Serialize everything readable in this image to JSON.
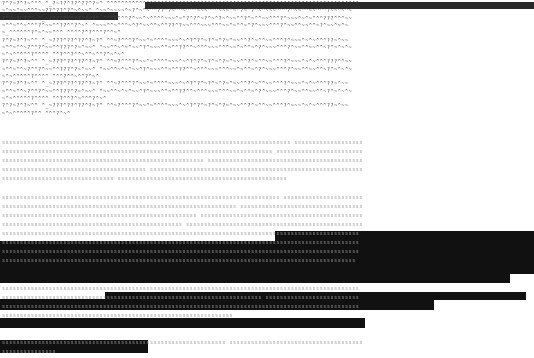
{
  "header": {
    "lines": [
      "?^?~?^?~^^^ ^_?~??^??^??^?~^ ^^^^^^^^^^^^^^^^^^^^^^^^^^^^^^^^^^^^^^^^^^^^^^^^^^^^^^^^^^^^^^^^^^^^^^",
      "~^~~^~~^^^~~??^??^?^~^~~^ ^~~^~~~~^~?^~^~^^??^?~^^~^^^~~~^^^~~~^~^?~^?^~^~~~^^^?^~~^^~~^^^?~~^~^~",
      "?^?~?^?^^ ^_~???^??^??^?~?^ ^^^?^^^?^~~^~^^^^~~~^~^?^?^~?^~^?~^~~^^?^~^^~~^^^?^~~~^~^~^^^???^^^~~",
      "~^^~^^~^^^?^~~^^??^^?^~^ ^~~~^^~^^^~^?^~~^^~^^??^?~~^^^~~~^^^~~^~^^~^?^~~~^^^?^~~^^~~^^~?^~~^~^~",
      "~_^^^^^^?^~^~~^^^ ^^^^?^?^^^?^^~^",
      "?^?~?^?~^^ ^_~???^??^??^?~?^ ^^~?^^^?^~~^~^^^^~~~^~^?^?^~?^~^?~^~~^^?^~^^~~^^^?^~~~^~^~^^^??~^~~",
      "~^^~^^~?^^?^~~^^???^?~^~~^ ^~~^^~^~^~~^?^~~~^^~^^??^^~^^^~~~^^^~~^~^^~^?^~~~^^^?^~~^^~~^^~?^~^~^~",
      "~^~^^^^^?^^^^ ^^?^^?^^~^^~^^?^~^~^",
      "?^?~?^?~^^ ^_~???^??^??^?~?^ ^^~?^^^?^~~^~^^^^~~~^~^?^?^~?^~^?~^~~^^?^~^^~~^^^?^~~~^~^~^^^???^^~~",
      "~^^~^^~?^^?^~~^^???^?~^~~^ ^~~^^~^~^~~^?^~~~^^~^^??^^~^^^~~~^^^~~^~^^~^?^~~~^^^?^~~^^~~^^~?^~^~^~",
      "~^~^^^^^?^^^^ ^^^?^^~^^?^~^",
      "?^?~?^?~^^ ^_~???^??^??^?~?^ ^^~?^^^?^~~^~^^^^~~~^~^?^?^~?^~^?~^~~^^?^~^^~~^^^?^~~~^~^~^^^??~^~~",
      "~^^~^^~?^^?^~~^^???^?~^~~^ ^~~^^~^~^~~^?^~~~^^~^^??^^~^^^~~~^^^~~^~^^~^?^~~~^^^?^~~^^~~^^~?^~^~^~",
      "~^~^^^^^?^^^^ ^^?^^?^~^^^?^~^",
      "?^?~?^?~^^ ^_~???^??^??^?~?^ ^^~?^^^?^~~^~^^^^~~~^~^?^?^~?^~^?~^~~^^?^~^^~~^^^?^~~~^~^~^^^??~^~~",
      "~^~^^^^^?^^ ^^^?^~^"
    ]
  },
  "body": {
    "lines": [
      "ssssssssssssssssssssssssssssssssssssssssssssssssssssssssssssssssssssssssssssssss sssssssssssssssssss",
      "sssssssssssssssssssssssssssssssssssssssssssssssssssssssssssssssssssssssssss ssssssssssssssssssssssss",
      "ssssssssssssssssssssssssssssssssssssssssssssssssssssssss sssssssssssssssssssssssssssssssssssssssssss",
      "ssssssssssssssssssssssssssssssssssssssss sssssssssssssssssssssssssssssssssssssssssssssssssssssssssss",
      "sssssssssssssssssssssssssssssss sssssssssssssssssssssssssssssssssssssssssssssss",
      "",
      "sssssssssssssssssssssssssssssssssssssssssssssssssssssssssssssssssssssssssssss ssssssssssssssssssssss",
      "sssssssssssssssssssssssssssssssssssssssssssssssssssssssssssssssss ssssssssssssssssssssssssssssssssss",
      "ssssssssssssssssssssssssssssssssssssssssssssssssssssss sssssssssssssssssssssssssssssssssssssssssssss",
      "ssssssssssssssssssssssssssssssssssssssssssssssssss sssssssssssssssssssssssssssssssssssssssssssssssss",
      "sssssssssssssssssssssssssssssssssssssssssssssssssssssssssssssssssssssssssssssssssssssssssssssssssss",
      "sssssssssssssssssssssssssssssssssssssssssssssssssssssssssssssssssssssssssssssssssssssssssssssssssss",
      "sssssssssssssssssssssssssssssssssssssssssssssssssssssssssssssssssssssssssssssssssssssssssssssssssss",
      "ssssssssssssssssssssssssssssssssssssssssssssssssssssssssssssssssssssssssssssssssssssssssssssssssss",
      "",
      "",
      "sssssssssssssssssssssssssssssssssssssssssssssssssssssssssssssssssssssssssssssssssssssssssssssssssss",
      "ssssssssssssssssssssssssssssssssssssssssssssssssssssssssssssssssssssssss ssssssssssssssssssssssssss",
      "sssssssssssssssssssssssssssssssssssssssssssssssssssssssssssssssssssssssssssssssssssssssssssssssssss",
      "ssssssssssssssssssssssssssssssssssssssssssssssssssssssssssssssss",
      "",
      "",
      "ssssssssssssssssssssssssssssssssssssssssssssssssssssssssssssss sssssssssssssssssssssssssssssssssssss",
      "sssssssssssssss"
    ]
  }
}
